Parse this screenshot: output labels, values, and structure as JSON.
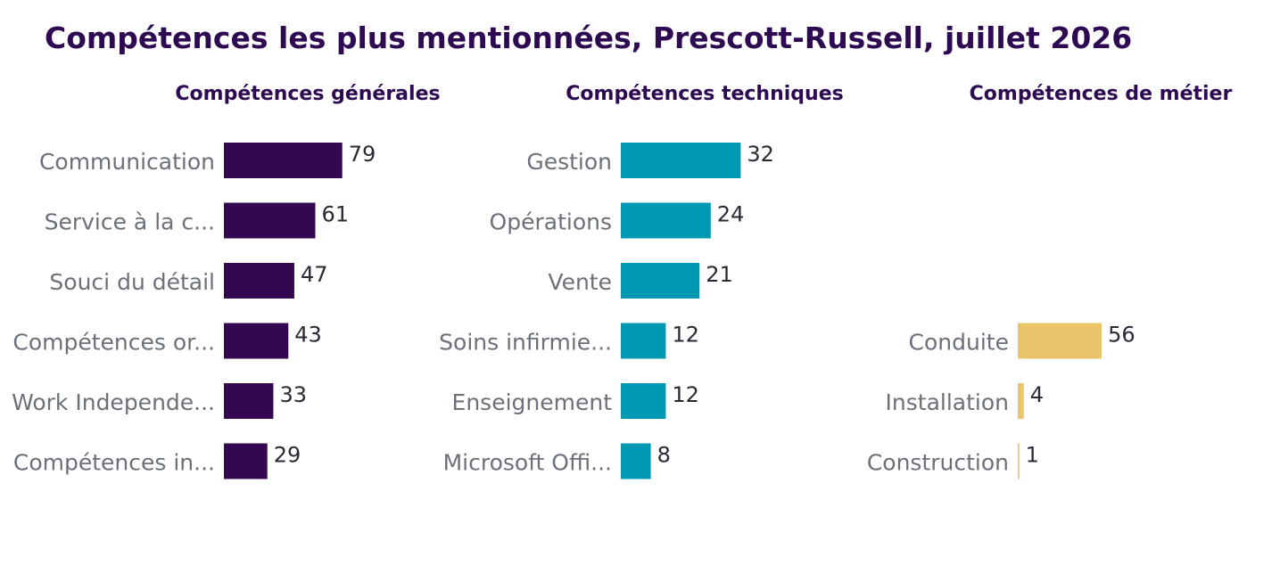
{
  "title": "Compétences les plus mentionnées, Prescott-Russell, juillet 2026",
  "colors": {
    "title": "#2e0a52",
    "category_text": "#6b7079",
    "value_text": "#2a2a35"
  },
  "chart_data": [
    {
      "type": "bar",
      "orientation": "horizontal",
      "title": "Compétences générales",
      "color": "#330851",
      "categories": [
        "Communication",
        "Service à la c...",
        "Souci du détail",
        "Compétences or...",
        "Work Independe...",
        "Compétences in..."
      ],
      "values": [
        79,
        61,
        47,
        43,
        33,
        29
      ],
      "xlim": [
        0,
        100
      ],
      "grid": false,
      "legend": "none"
    },
    {
      "type": "bar",
      "orientation": "horizontal",
      "title": "Compétences techniques",
      "color": "#0099b4",
      "categories": [
        "Gestion",
        "Opérations",
        "Vente",
        "Soins infirmie...",
        "Enseignement",
        "Microsoft Offi..."
      ],
      "values": [
        32,
        24,
        21,
        12,
        12,
        8
      ],
      "xlim": [
        0,
        40
      ],
      "grid": false,
      "legend": "none"
    },
    {
      "type": "bar",
      "orientation": "horizontal",
      "title": "Compétences de métier",
      "color": "#e9c46a",
      "categories": [
        "Conduite",
        "Installation",
        "Construction"
      ],
      "values": [
        56,
        4,
        1
      ],
      "xlim": [
        0,
        100
      ],
      "grid": false,
      "legend": "none"
    }
  ]
}
